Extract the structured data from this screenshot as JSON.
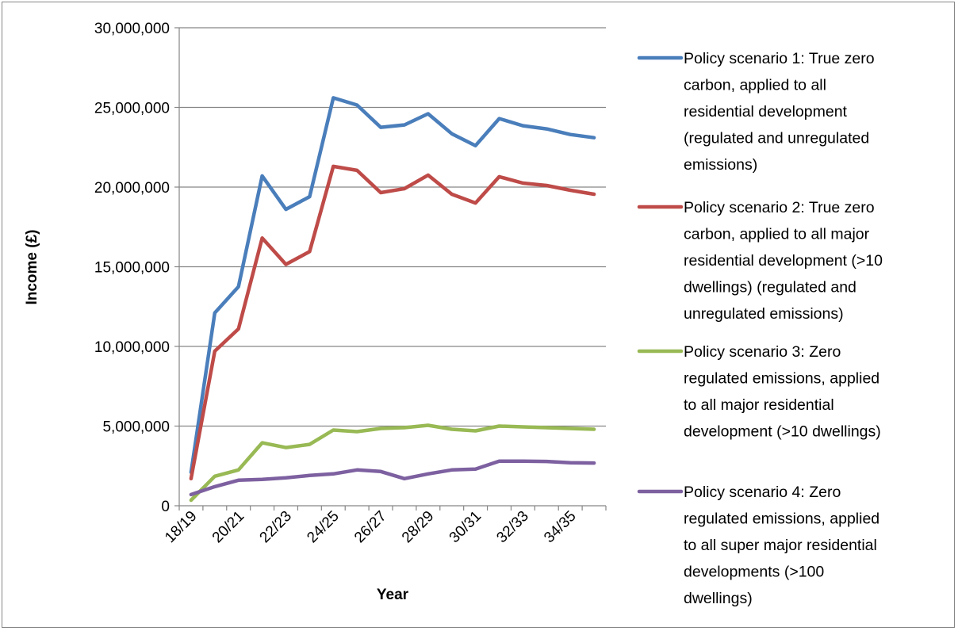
{
  "chart_data": {
    "type": "line",
    "title": "",
    "xlabel": "Year",
    "ylabel": "Income (£)",
    "ylim": [
      0,
      30000000
    ],
    "yticks": [
      0,
      5000000,
      10000000,
      15000000,
      20000000,
      25000000,
      30000000
    ],
    "ytick_labels": [
      "0",
      "5,000,000",
      "10,000,000",
      "15,000,000",
      "20,000,000",
      "25,000,000",
      "30,000,000"
    ],
    "x": [
      "18/19",
      "19/20",
      "20/21",
      "21/22",
      "22/23",
      "23/24",
      "24/25",
      "25/26",
      "26/27",
      "27/28",
      "28/29",
      "29/30",
      "30/31",
      "31/32",
      "32/33",
      "33/34",
      "34/35",
      "35/36"
    ],
    "xtick_labels": [
      "18/19",
      "20/21",
      "22/23",
      "24/25",
      "26/27",
      "28/29",
      "30/31",
      "32/33",
      "34/35"
    ],
    "grid": "horizontal",
    "legend_position": "right",
    "series": [
      {
        "name": "Policy scenario 1: True zero carbon, applied to all residential development (regulated and unregulated emissions)",
        "color": "#4a7ebb",
        "legend_lines": [
          "Policy scenario 1: True zero",
          "carbon, applied to all",
          "residential development",
          "(regulated and unregulated",
          "emissions)"
        ],
        "values": [
          2100000,
          12100000,
          13750000,
          20700000,
          18600000,
          19400000,
          25600000,
          25150000,
          23750000,
          23900000,
          24600000,
          23350000,
          22600000,
          24300000,
          23850000,
          23650000,
          23300000,
          23100000
        ]
      },
      {
        "name": "Policy scenario 2: True zero carbon, applied to all major residential development (>10 dwellings) (regulated and unregulated emissions)",
        "color": "#be4b48",
        "legend_lines": [
          "Policy scenario 2: True zero",
          "carbon, applied to all major",
          "residential development (>10",
          "dwellings) (regulated and",
          "unregulated emissions)"
        ],
        "values": [
          1700000,
          9700000,
          11100000,
          16800000,
          15150000,
          15950000,
          21300000,
          21050000,
          19650000,
          19900000,
          20750000,
          19550000,
          19000000,
          20650000,
          20250000,
          20100000,
          19800000,
          19550000
        ]
      },
      {
        "name": "Policy scenario 3: Zero regulated emissions, applied to all major residential development (>10 dwellings)",
        "color": "#98b954",
        "legend_lines": [
          "Policy scenario 3: Zero",
          "regulated emissions, applied",
          "to all major residential",
          "development (>10 dwellings)"
        ],
        "values": [
          350000,
          1850000,
          2250000,
          3950000,
          3650000,
          3850000,
          4750000,
          4650000,
          4850000,
          4900000,
          5050000,
          4800000,
          4700000,
          5000000,
          4950000,
          4900000,
          4850000,
          4800000
        ]
      },
      {
        "name": "Policy scenario 4: Zero regulated emissions, applied to all super major residential developments (>100 dwellings)",
        "color": "#7d60a0",
        "legend_lines": [
          "Policy scenario 4: Zero",
          "regulated emissions, applied",
          "to all super major residential",
          "developments (>100",
          "dwellings)"
        ],
        "values": [
          700000,
          1200000,
          1600000,
          1650000,
          1750000,
          1900000,
          2000000,
          2250000,
          2150000,
          1700000,
          2000000,
          2250000,
          2300000,
          2800000,
          2800000,
          2780000,
          2700000,
          2680000
        ]
      }
    ]
  }
}
